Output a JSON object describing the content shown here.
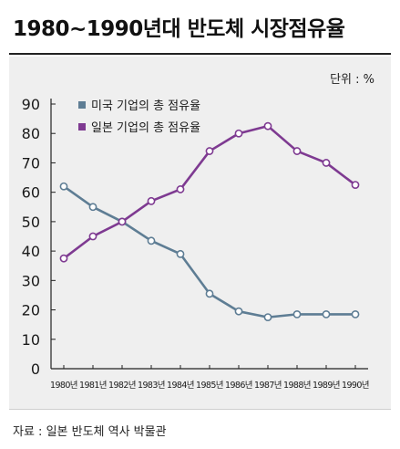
{
  "title": "1980~1990년대 반도체 시장점유율",
  "unit_label": "단위 : %",
  "source": "자료 : 일본 반도체 역사 박물관",
  "chart_data": {
    "type": "line",
    "categories": [
      "1980년",
      "1981년",
      "1982년",
      "1983년",
      "1984년",
      "1985년",
      "1986년",
      "1987년",
      "1988년",
      "1989년",
      "1990년"
    ],
    "series": [
      {
        "name": "미국 기업의 총 점유율",
        "color": "#5e7d94",
        "values": [
          62,
          55,
          50,
          43.5,
          39,
          25.5,
          19.5,
          17.5,
          18.5,
          18.5,
          18.5
        ]
      },
      {
        "name": "일본 기업의 총 점유율",
        "color": "#7e3a91",
        "values": [
          37.5,
          45,
          50,
          57,
          61,
          74,
          80,
          82.5,
          74,
          70,
          62.5
        ]
      }
    ],
    "ylim": [
      0,
      90
    ],
    "yticks": [
      0,
      10,
      20,
      30,
      40,
      50,
      60,
      70,
      80,
      90
    ],
    "grid": false,
    "legend": "top-left"
  }
}
